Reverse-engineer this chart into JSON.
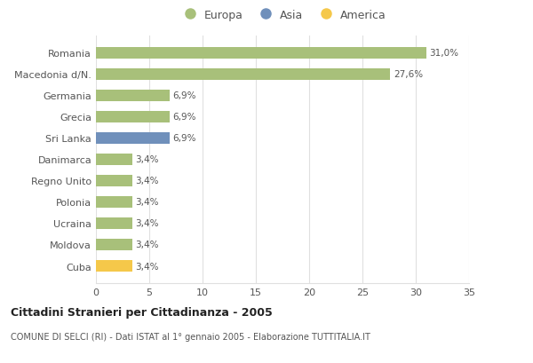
{
  "categories": [
    "Romania",
    "Macedonia d/N.",
    "Germania",
    "Grecia",
    "Sri Lanka",
    "Danimarca",
    "Regno Unito",
    "Polonia",
    "Ucraina",
    "Moldova",
    "Cuba"
  ],
  "values": [
    31.0,
    27.6,
    6.9,
    6.9,
    6.9,
    3.4,
    3.4,
    3.4,
    3.4,
    3.4,
    3.4
  ],
  "labels": [
    "31,0%",
    "27,6%",
    "6,9%",
    "6,9%",
    "6,9%",
    "3,4%",
    "3,4%",
    "3,4%",
    "3,4%",
    "3,4%",
    "3,4%"
  ],
  "continents": [
    "Europa",
    "Europa",
    "Europa",
    "Europa",
    "Asia",
    "Europa",
    "Europa",
    "Europa",
    "Europa",
    "Europa",
    "America"
  ],
  "colors": {
    "Europa": "#a8c07a",
    "Asia": "#7090bb",
    "America": "#f5c84a"
  },
  "legend_items": [
    "Europa",
    "Asia",
    "America"
  ],
  "legend_colors": [
    "#a8c07a",
    "#7090bb",
    "#f5c84a"
  ],
  "xlim": [
    0,
    35
  ],
  "xticks": [
    0,
    5,
    10,
    15,
    20,
    25,
    30,
    35
  ],
  "title": "Cittadini Stranieri per Cittadinanza - 2005",
  "subtitle": "COMUNE DI SELCI (RI) - Dati ISTAT al 1° gennaio 2005 - Elaborazione TUTTITALIA.IT",
  "background_color": "#ffffff",
  "grid_color": "#e0e0e0",
  "bar_height": 0.55
}
